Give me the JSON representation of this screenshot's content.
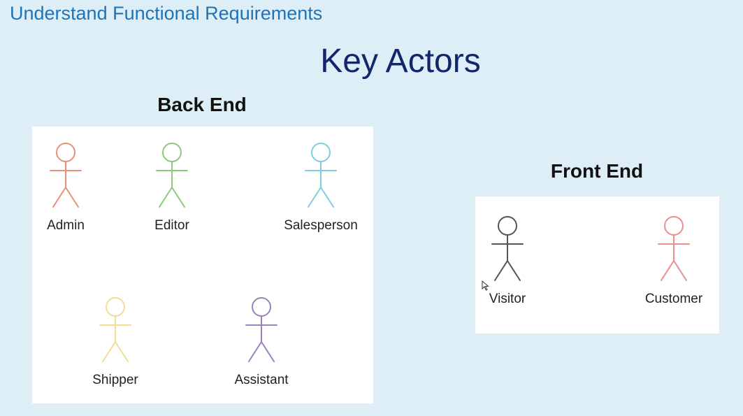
{
  "header": {
    "title": "Understand Functional Requirements"
  },
  "slide": {
    "title": "Key Actors"
  },
  "back_end": {
    "title": "Back End",
    "actors": [
      {
        "label": "Admin",
        "color": "#e8907a"
      },
      {
        "label": "Editor",
        "color": "#8cc97f"
      },
      {
        "label": "Salesperson",
        "color": "#7fcde0"
      },
      {
        "label": "Shipper",
        "color": "#f3dc93"
      },
      {
        "label": "Assistant",
        "color": "#9a82bd"
      }
    ]
  },
  "front_end": {
    "title": "Front End",
    "actors": [
      {
        "label": "Visitor",
        "color": "#555555"
      },
      {
        "label": "Customer",
        "color": "#e88f8f"
      }
    ]
  },
  "colors": {
    "background": "#deeef7",
    "header_text": "#1f73b7",
    "slide_title_text": "#12266a"
  }
}
